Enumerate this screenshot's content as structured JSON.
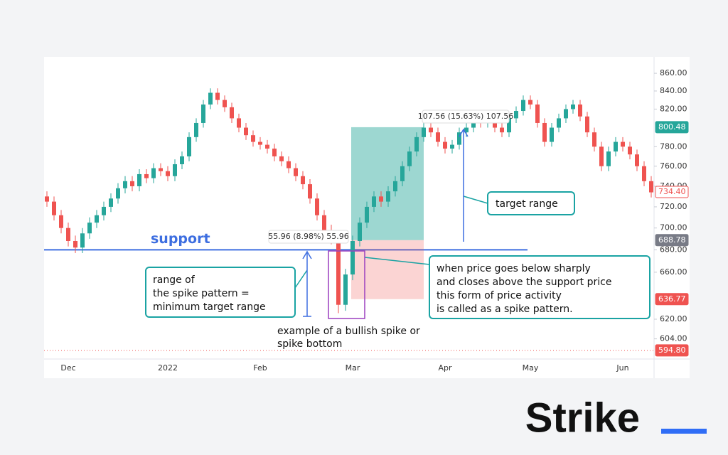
{
  "chart_data": {
    "type": "candlestick",
    "categories": [
      null,
      null,
      null,
      "Dec",
      null,
      null,
      null,
      null,
      null,
      null,
      null,
      null,
      null,
      null,
      null,
      null,
      null,
      "2022",
      null,
      null,
      null,
      null,
      null,
      null,
      null,
      null,
      null,
      null,
      null,
      null,
      "Feb",
      null,
      null,
      null,
      null,
      null,
      null,
      null,
      null,
      null,
      null,
      null,
      null,
      "Mar",
      null,
      null,
      null,
      null,
      null,
      null,
      null,
      null,
      null,
      null,
      null,
      null,
      "Apr",
      null,
      null,
      null,
      null,
      null,
      null,
      null,
      null,
      null,
      null,
      null,
      "May",
      null,
      null,
      null,
      null,
      null,
      null,
      null,
      null,
      null,
      null,
      null,
      null,
      "Jun",
      null,
      null,
      null,
      null
    ],
    "open": [
      730,
      725,
      712,
      700,
      688,
      682,
      695,
      705,
      712,
      720,
      728,
      738,
      745,
      740,
      752,
      748,
      758,
      755,
      750,
      762,
      770,
      790,
      805,
      825,
      838,
      830,
      822,
      810,
      800,
      792,
      785,
      782,
      778,
      770,
      765,
      758,
      750,
      742,
      728,
      712,
      698,
      690,
      632,
      658,
      688,
      705,
      720,
      730,
      725,
      735,
      745,
      760,
      775,
      790,
      800,
      795,
      785,
      778,
      782,
      795,
      800,
      808,
      805,
      812,
      800,
      795,
      810,
      818,
      830,
      825,
      805,
      785,
      800,
      810,
      820,
      825,
      812,
      795,
      780,
      760,
      775,
      785,
      780,
      772,
      760,
      745
    ],
    "high": [
      735,
      730,
      717,
      705,
      693,
      700,
      710,
      717,
      725,
      733,
      743,
      750,
      750,
      757,
      757,
      763,
      763,
      760,
      767,
      775,
      795,
      810,
      830,
      843,
      843,
      835,
      827,
      815,
      805,
      797,
      790,
      787,
      783,
      775,
      770,
      763,
      755,
      747,
      733,
      717,
      703,
      692,
      663,
      693,
      710,
      725,
      735,
      735,
      740,
      750,
      765,
      780,
      795,
      805,
      805,
      800,
      790,
      787,
      800,
      805,
      813,
      813,
      817,
      817,
      805,
      815,
      823,
      835,
      835,
      830,
      810,
      805,
      815,
      825,
      830,
      830,
      817,
      800,
      785,
      780,
      790,
      790,
      785,
      777,
      765,
      750
    ],
    "low": [
      720,
      707,
      695,
      683,
      677,
      677,
      690,
      700,
      707,
      715,
      723,
      733,
      735,
      735,
      743,
      743,
      750,
      745,
      745,
      757,
      765,
      785,
      800,
      820,
      825,
      817,
      805,
      795,
      787,
      780,
      777,
      773,
      765,
      760,
      753,
      745,
      737,
      723,
      707,
      693,
      685,
      625,
      627,
      653,
      683,
      700,
      715,
      720,
      720,
      730,
      740,
      755,
      770,
      785,
      790,
      780,
      773,
      773,
      777,
      790,
      795,
      800,
      800,
      795,
      790,
      790,
      805,
      813,
      820,
      800,
      780,
      780,
      795,
      805,
      815,
      807,
      790,
      775,
      755,
      755,
      770,
      775,
      767,
      755,
      740,
      729
    ],
    "close": [
      725,
      712,
      700,
      688,
      682,
      695,
      705,
      712,
      720,
      728,
      738,
      745,
      740,
      752,
      748,
      758,
      755,
      750,
      762,
      770,
      790,
      805,
      825,
      838,
      830,
      822,
      810,
      800,
      792,
      785,
      782,
      778,
      770,
      765,
      758,
      750,
      742,
      728,
      712,
      698,
      690,
      632,
      658,
      688,
      705,
      720,
      730,
      725,
      735,
      745,
      760,
      775,
      790,
      800,
      795,
      785,
      778,
      782,
      795,
      800,
      808,
      805,
      812,
      800,
      795,
      810,
      818,
      830,
      825,
      805,
      785,
      800,
      810,
      820,
      825,
      812,
      795,
      780,
      760,
      775,
      785,
      780,
      772,
      760,
      745,
      734
    ],
    "up_color": "#26a69a",
    "down_color": "#ef5350",
    "log_scale": true,
    "grid": false,
    "ylim": [
      588,
      879
    ],
    "yticks": [
      {
        "value": 860,
        "label": "860.00"
      },
      {
        "value": 840,
        "label": "840.00"
      },
      {
        "value": 820,
        "label": "820.00"
      },
      {
        "value": 780,
        "label": "780.00"
      },
      {
        "value": 760,
        "label": "760.00"
      },
      {
        "value": 740,
        "label": "740.00"
      },
      {
        "value": 720,
        "label": "720.00"
      },
      {
        "value": 700,
        "label": "700.00"
      },
      {
        "value": 680,
        "label": "680.00"
      },
      {
        "value": 660,
        "label": "660.00"
      },
      {
        "value": 620,
        "label": "620.00"
      },
      {
        "value": 604,
        "label": "604.00"
      }
    ],
    "price_labels": [
      {
        "value": 800.48,
        "label": "800.48",
        "color": "#26a69a"
      },
      {
        "value": 734.4,
        "label": "734.40",
        "color": "#ef5350"
      },
      {
        "value": 688.78,
        "label": "688.78",
        "color": "#787b86"
      },
      {
        "value": 636.77,
        "label": "636.77",
        "color": "#ef5350"
      },
      {
        "value": 594.8,
        "label": "594.80",
        "color": "#ef5350"
      }
    ],
    "support": {
      "label": "support",
      "value": 680,
      "color": "#3d6ee0"
    },
    "measures": [
      "55.96 (8.98%) 55.96",
      "107.56 (15.63%) 107.56"
    ],
    "annotations": {
      "range": [
        "range of",
        "the spike pattern =",
        "minimum target range"
      ],
      "example": [
        "example of a bullish spike or",
        "spike bottom"
      ],
      "definition": [
        "when price goes below sharply",
        "and closes above the support price",
        "this form of price activity",
        "is called as a spike pattern."
      ],
      "target": [
        "target range"
      ]
    }
  },
  "brand": "Strike"
}
